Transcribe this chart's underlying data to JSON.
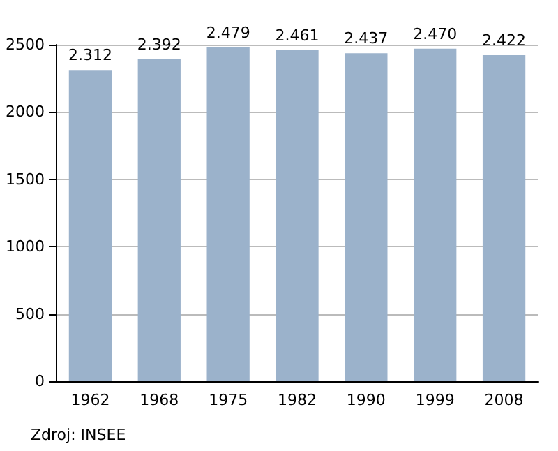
{
  "chart_data": {
    "type": "bar",
    "categories": [
      "1962",
      "1968",
      "1975",
      "1982",
      "1990",
      "1999",
      "2008"
    ],
    "values": [
      2312,
      2392,
      2479,
      2461,
      2437,
      2470,
      2422
    ],
    "value_labels": [
      "2.312",
      "2.392",
      "2.479",
      "2.461",
      "2.437",
      "2.470",
      "2.422"
    ],
    "color": "#9bb2cb",
    "ylim": [
      0,
      2500
    ],
    "yticks": [
      0,
      500,
      1000,
      1500,
      2000,
      2500
    ],
    "grid": "y",
    "annotations": [
      "Zdroj: INSEE"
    ]
  }
}
